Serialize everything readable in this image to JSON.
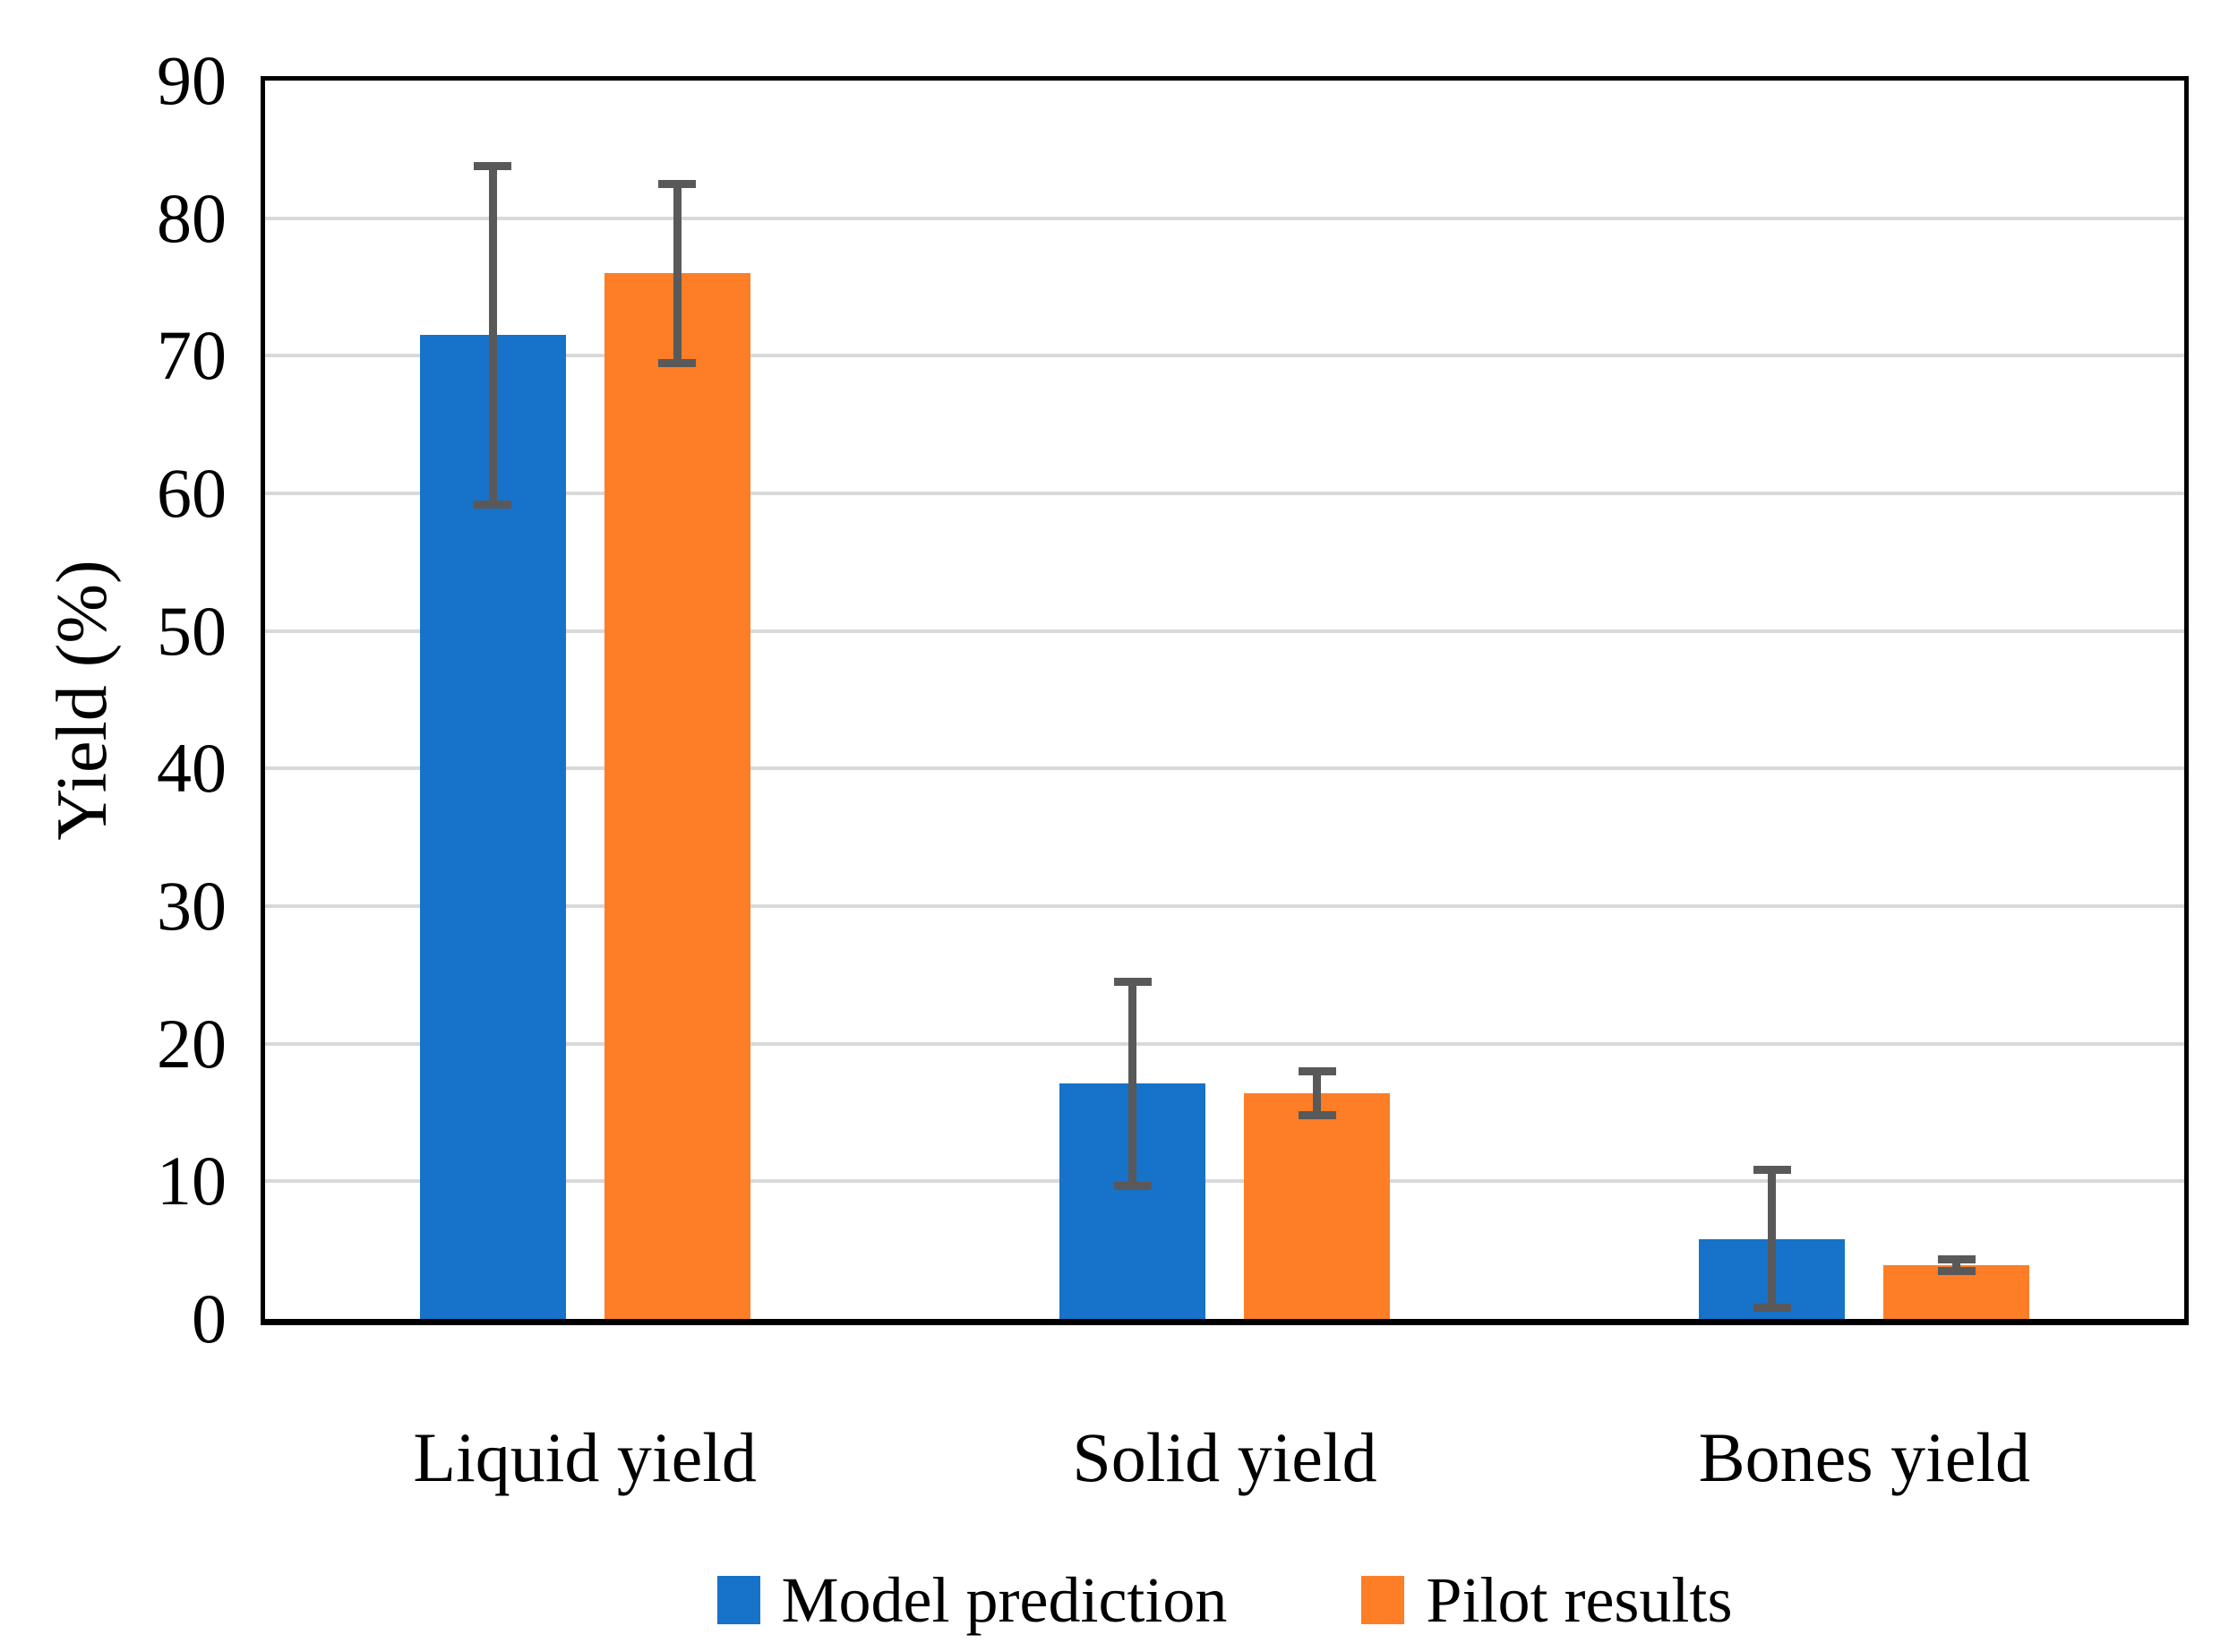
{
  "chart_data": {
    "type": "bar",
    "title": "",
    "categories": [
      "Liquid yield",
      "Solid yield",
      "Bones yield"
    ],
    "series": [
      {
        "name": "Model prediction",
        "color": "#1772C9",
        "values": [
          71.5,
          17.1,
          5.8
        ],
        "error": [
          12.6,
          7.7,
          5.3
        ]
      },
      {
        "name": "Pilot results",
        "color": "#FD7E26",
        "values": [
          76.0,
          16.4,
          3.9
        ],
        "error": [
          6.8,
          1.9,
          0.7
        ]
      }
    ],
    "xlabel": "",
    "ylabel": "Yield (%)",
    "ylim": [
      0,
      90
    ],
    "ytick_step": 10,
    "yticks": [
      0,
      10,
      20,
      30,
      40,
      50,
      60,
      70,
      80,
      90
    ],
    "grid": true,
    "legend_position": "bottom",
    "error_bars": true
  },
  "style_colors": {
    "series_model_prediction": "#1772C9",
    "series_pilot_results": "#FD7E26",
    "error_bar": "#595959",
    "gridline": "#D9D9D9",
    "axis_border": "#000000",
    "text": "#000000",
    "background": "#FFFFFF"
  }
}
